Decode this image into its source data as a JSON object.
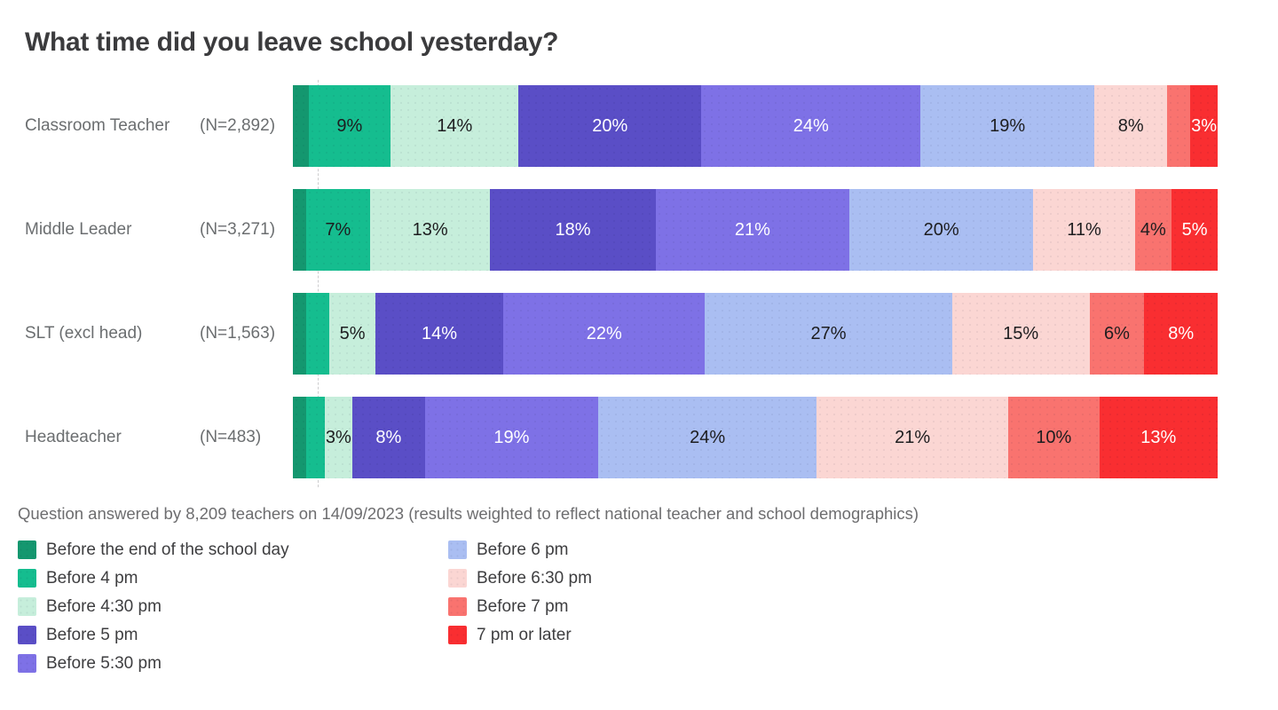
{
  "title": "What time did you leave school yesterday?",
  "caption": "Question answered by 8,209 teachers on 14/09/2023 (results weighted to reflect national teacher and school demographics)",
  "chart_data": {
    "type": "bar",
    "stacked": true,
    "orientation": "horizontal",
    "title": "What time did you leave school yesterday?",
    "xlim": [
      0,
      100
    ],
    "grid": false,
    "legend_position": "bottom",
    "categories": [
      "Classroom Teacher",
      "Middle Leader",
      "SLT (excl head)",
      "Headteacher"
    ],
    "sample_labels": [
      "(N=2,892)",
      "(N=3,271)",
      "(N=1,563)",
      "(N=483)"
    ],
    "legend": [
      {
        "label": "Before the end of the school day",
        "color": "#14976f"
      },
      {
        "label": "Before 4 pm",
        "color": "#15bd8f"
      },
      {
        "label": "Before 4:30 pm",
        "color": "#c6eedb"
      },
      {
        "label": "Before 5 pm",
        "color": "#5a4ec6"
      },
      {
        "label": "Before 5:30 pm",
        "color": "#7e71e6"
      },
      {
        "label": "Before 6 pm",
        "color": "#aabef2"
      },
      {
        "label": "Before 6:30 pm",
        "color": "#fbd6d3"
      },
      {
        "label": "Before 7 pm",
        "color": "#f9736f"
      },
      {
        "label": "7 pm or later",
        "color": "#f92e31"
      }
    ],
    "rows": [
      {
        "category": "Classroom Teacher",
        "n_label": "(N=2,892)",
        "segments": [
          {
            "value": 1.7,
            "label": "",
            "text": "dark"
          },
          {
            "value": 9,
            "label": "9%",
            "text": "dark"
          },
          {
            "value": 14,
            "label": "14%",
            "text": "dark"
          },
          {
            "value": 20,
            "label": "20%",
            "text": "light"
          },
          {
            "value": 24,
            "label": "24%",
            "text": "light"
          },
          {
            "value": 19,
            "label": "19%",
            "text": "dark"
          },
          {
            "value": 8,
            "label": "8%",
            "text": "dark"
          },
          {
            "value": 2.5,
            "label": "",
            "text": "dark"
          },
          {
            "value": 3,
            "label": "3%",
            "text": "light"
          }
        ]
      },
      {
        "category": "Middle Leader",
        "n_label": "(N=3,271)",
        "segments": [
          {
            "value": 1.4,
            "label": "",
            "text": "dark"
          },
          {
            "value": 7,
            "label": "7%",
            "text": "dark"
          },
          {
            "value": 13,
            "label": "13%",
            "text": "dark"
          },
          {
            "value": 18,
            "label": "18%",
            "text": "light"
          },
          {
            "value": 21,
            "label": "21%",
            "text": "light"
          },
          {
            "value": 20,
            "label": "20%",
            "text": "dark"
          },
          {
            "value": 11,
            "label": "11%",
            "text": "dark"
          },
          {
            "value": 4,
            "label": "4%",
            "text": "dark"
          },
          {
            "value": 5,
            "label": "5%",
            "text": "light"
          }
        ]
      },
      {
        "category": "SLT (excl head)",
        "n_label": "(N=1,563)",
        "segments": [
          {
            "value": 1.5,
            "label": "",
            "text": "dark"
          },
          {
            "value": 2.5,
            "label": "",
            "text": "dark"
          },
          {
            "value": 5,
            "label": "5%",
            "text": "dark"
          },
          {
            "value": 14,
            "label": "14%",
            "text": "light"
          },
          {
            "value": 22,
            "label": "22%",
            "text": "light"
          },
          {
            "value": 27,
            "label": "27%",
            "text": "dark"
          },
          {
            "value": 15,
            "label": "15%",
            "text": "dark"
          },
          {
            "value": 6,
            "label": "6%",
            "text": "dark"
          },
          {
            "value": 8,
            "label": "8%",
            "text": "light"
          }
        ]
      },
      {
        "category": "Headteacher",
        "n_label": "(N=483)",
        "segments": [
          {
            "value": 1.5,
            "label": "",
            "text": "dark"
          },
          {
            "value": 2,
            "label": "",
            "text": "dark"
          },
          {
            "value": 3,
            "label": "3%",
            "text": "dark"
          },
          {
            "value": 8,
            "label": "8%",
            "text": "light"
          },
          {
            "value": 19,
            "label": "19%",
            "text": "light"
          },
          {
            "value": 24,
            "label": "24%",
            "text": "dark"
          },
          {
            "value": 21,
            "label": "21%",
            "text": "dark"
          },
          {
            "value": 10,
            "label": "10%",
            "text": "dark"
          },
          {
            "value": 13,
            "label": "13%",
            "text": "light"
          }
        ]
      }
    ]
  }
}
